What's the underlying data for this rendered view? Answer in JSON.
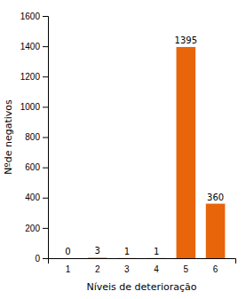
{
  "chart_data": {
    "type": "bar",
    "categories": [
      "1",
      "2",
      "3",
      "4",
      "5",
      "6"
    ],
    "values": [
      0,
      3,
      1,
      1,
      1395,
      360
    ],
    "color": "#E8650A",
    "xlabel": "Níveis de deterioração",
    "ylabel": "Nºde negativos",
    "ylim": [
      0,
      1600
    ],
    "yticks": [
      0,
      200,
      400,
      600,
      800,
      1000,
      1200,
      1400,
      1600
    ],
    "grid": false,
    "data_labels": true
  }
}
